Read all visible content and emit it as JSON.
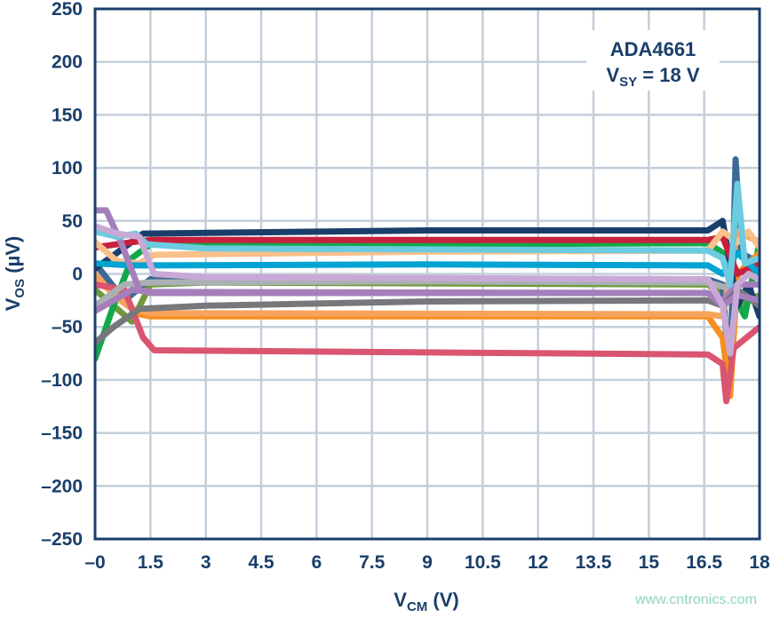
{
  "chart_data": {
    "type": "line",
    "title": "",
    "annotation": {
      "line1": "ADA4661",
      "line2_main": "V",
      "line2_sub": "SY",
      "line2_rest": " = 18 V"
    },
    "xlabel": {
      "main": "V",
      "sub": "CM",
      "rest": " (V)"
    },
    "ylabel": {
      "main": "V",
      "sub": "OS",
      "rest": " (µV)"
    },
    "xlim": [
      0,
      18
    ],
    "ylim": [
      -250,
      250
    ],
    "xticks": [
      0,
      1.5,
      3,
      4.5,
      6,
      7.5,
      9,
      10.5,
      12,
      13.5,
      15,
      16.5,
      18
    ],
    "xtick_labels": [
      "–0",
      "1.5",
      "3",
      "4.5",
      "6",
      "7.5",
      "9",
      "10.5",
      "12",
      "13.5",
      "15",
      "16.5",
      "18"
    ],
    "yticks": [
      -250,
      -200,
      -150,
      -100,
      -50,
      0,
      50,
      100,
      150,
      200,
      250
    ],
    "ytick_labels": [
      "–250",
      "–200",
      "–150",
      "–100",
      "–50",
      "0",
      "50",
      "100",
      "150",
      "200",
      "250"
    ],
    "grid": true,
    "watermark": "www.cntronics.com",
    "series": [
      {
        "color": "#6f9a3a",
        "points": [
          [
            0,
            -15
          ],
          [
            0.5,
            -30
          ],
          [
            1,
            -45
          ],
          [
            1.5,
            -10
          ],
          [
            3,
            -8
          ],
          [
            16.6,
            -10
          ],
          [
            17.0,
            -20
          ],
          [
            17.4,
            -30
          ],
          [
            18,
            -20
          ]
        ]
      },
      {
        "color": "#11a84a",
        "points": [
          [
            0,
            -80
          ],
          [
            0.5,
            -30
          ],
          [
            1,
            15
          ],
          [
            1.5,
            28
          ],
          [
            9,
            28
          ],
          [
            16.6,
            29
          ],
          [
            17.0,
            20
          ],
          [
            17.3,
            -20
          ],
          [
            17.6,
            -40
          ],
          [
            18,
            30
          ]
        ]
      },
      {
        "color": "#3e6896",
        "points": [
          [
            0,
            10
          ],
          [
            0.8,
            -25
          ],
          [
            1.5,
            -5
          ],
          [
            16.6,
            -5
          ],
          [
            17.0,
            -10
          ],
          [
            17.2,
            -110
          ],
          [
            17.35,
            108
          ],
          [
            17.5,
            20
          ],
          [
            18,
            10
          ]
        ]
      },
      {
        "color": "#f7901e",
        "points": [
          [
            0,
            -5
          ],
          [
            0.6,
            -20
          ],
          [
            1.2,
            -38
          ],
          [
            1.5,
            -40
          ],
          [
            16.6,
            -40
          ],
          [
            17.0,
            -60
          ],
          [
            17.2,
            -115
          ],
          [
            17.4,
            0
          ],
          [
            18,
            20
          ]
        ]
      },
      {
        "color": "#f7a35c",
        "points": [
          [
            0,
            0
          ],
          [
            0.5,
            -20
          ],
          [
            1,
            -33
          ],
          [
            1.5,
            -37
          ],
          [
            16.6,
            -38
          ],
          [
            17.0,
            -40
          ],
          [
            17.4,
            40
          ],
          [
            17.7,
            35
          ],
          [
            18,
            30
          ]
        ]
      },
      {
        "color": "#d95570",
        "points": [
          [
            0,
            -10
          ],
          [
            0.8,
            -15
          ],
          [
            1.3,
            -60
          ],
          [
            1.6,
            -72
          ],
          [
            9,
            -74
          ],
          [
            16.6,
            -76
          ],
          [
            17.0,
            -85
          ],
          [
            17.1,
            -120
          ],
          [
            17.3,
            -70
          ],
          [
            18,
            -50
          ]
        ]
      },
      {
        "color": "#1a3e6a",
        "points": [
          [
            0,
            5
          ],
          [
            0.6,
            20
          ],
          [
            1.3,
            38
          ],
          [
            9,
            41
          ],
          [
            16.6,
            41
          ],
          [
            17.0,
            50
          ],
          [
            17.4,
            -30
          ],
          [
            17.7,
            -10
          ],
          [
            18,
            -40
          ]
        ]
      },
      {
        "color": "#c8203e",
        "points": [
          [
            0,
            25
          ],
          [
            1,
            30
          ],
          [
            1.5,
            32
          ],
          [
            16.6,
            32
          ],
          [
            17.0,
            35
          ],
          [
            17.4,
            0
          ],
          [
            18,
            10
          ]
        ]
      },
      {
        "color": "#f9c08a",
        "points": [
          [
            0,
            30
          ],
          [
            0.6,
            12
          ],
          [
            1.2,
            10
          ],
          [
            1.6,
            18
          ],
          [
            9,
            21
          ],
          [
            16.6,
            22
          ],
          [
            17.0,
            40
          ],
          [
            17.4,
            30
          ],
          [
            17.7,
            40
          ],
          [
            18,
            25
          ]
        ]
      },
      {
        "color": "#00a3d1",
        "points": [
          [
            0,
            10
          ],
          [
            1,
            8
          ],
          [
            1.5,
            8
          ],
          [
            9,
            9
          ],
          [
            16.6,
            8
          ],
          [
            17.0,
            0
          ],
          [
            17.4,
            20
          ],
          [
            18,
            0
          ]
        ]
      },
      {
        "color": "#aab0b3",
        "points": [
          [
            0,
            -30
          ],
          [
            0.8,
            -10
          ],
          [
            1.5,
            -8
          ],
          [
            9,
            -7
          ],
          [
            16.6,
            -8
          ],
          [
            17.0,
            -12
          ],
          [
            17.4,
            -15
          ],
          [
            18,
            -30
          ]
        ]
      },
      {
        "color": "#a57fbc",
        "points": [
          [
            0,
            60
          ],
          [
            0.3,
            60
          ],
          [
            0.7,
            30
          ],
          [
            1.2,
            -15
          ],
          [
            1.5,
            -18
          ],
          [
            16.6,
            -18
          ],
          [
            17.0,
            -25
          ],
          [
            17.4,
            -10
          ],
          [
            18,
            -10
          ]
        ]
      },
      {
        "color": "#77787a",
        "points": [
          [
            0,
            -65
          ],
          [
            0.5,
            -50
          ],
          [
            1.2,
            -33
          ],
          [
            3,
            -30
          ],
          [
            9,
            -26
          ],
          [
            16.6,
            -25
          ],
          [
            17.0,
            -30
          ],
          [
            17.4,
            -15
          ],
          [
            18,
            -30
          ]
        ]
      },
      {
        "color": "#6ccbe0",
        "points": [
          [
            0,
            40
          ],
          [
            0.6,
            35
          ],
          [
            1.1,
            38
          ],
          [
            1.4,
            28
          ],
          [
            3,
            24
          ],
          [
            16.6,
            22
          ],
          [
            17.0,
            15
          ],
          [
            17.2,
            -10
          ],
          [
            17.4,
            85
          ],
          [
            17.6,
            10
          ],
          [
            18,
            15
          ]
        ]
      },
      {
        "color": "#a57fbc",
        "points": [
          [
            0,
            -35
          ],
          [
            0.5,
            -25
          ],
          [
            1,
            -15
          ],
          [
            1.5,
            -17
          ],
          [
            16.6,
            -18
          ],
          [
            17.0,
            -30
          ],
          [
            17.4,
            -20
          ],
          [
            18,
            -25
          ]
        ]
      },
      {
        "color": "#c8a9d6",
        "points": [
          [
            0,
            45
          ],
          [
            0.6,
            38
          ],
          [
            1.2,
            35
          ],
          [
            1.6,
            0
          ],
          [
            3,
            -3
          ],
          [
            16.6,
            -5
          ],
          [
            17.0,
            -30
          ],
          [
            17.2,
            -75
          ],
          [
            17.4,
            -10
          ],
          [
            17.7,
            0
          ],
          [
            18,
            -5
          ]
        ]
      }
    ]
  }
}
